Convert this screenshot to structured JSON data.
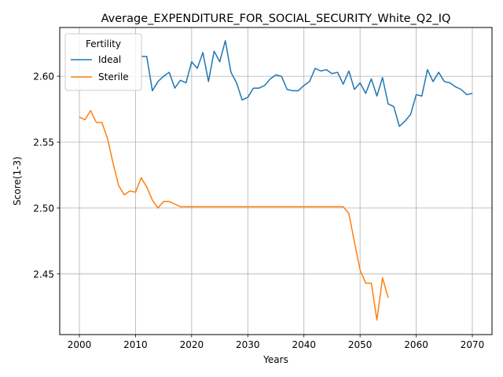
{
  "chart_data": {
    "type": "line",
    "title": "Average_EXPENDITURE_FOR_SOCIAL_SECURITY_White_Q2_IQ",
    "xlabel": "Years",
    "ylabel": "Score(1-3)",
    "xlim": [
      1996.5,
      2073.5
    ],
    "ylim": [
      2.404,
      2.637
    ],
    "xticks": [
      2000,
      2010,
      2020,
      2030,
      2040,
      2050,
      2060,
      2070
    ],
    "yticks": [
      2.45,
      2.5,
      2.55,
      2.6
    ],
    "ytick_labels": [
      "2.45",
      "2.50",
      "2.55",
      "2.60"
    ],
    "grid": true,
    "legend": {
      "title": "Fertility",
      "position": "top-left"
    },
    "series": [
      {
        "name": "Ideal",
        "color": "#1f77b4",
        "x": [
          2011,
          2012,
          2013,
          2014,
          2015,
          2016,
          2017,
          2018,
          2019,
          2020,
          2021,
          2022,
          2023,
          2024,
          2025,
          2026,
          2027,
          2028,
          2029,
          2030,
          2031,
          2032,
          2033,
          2034,
          2035,
          2036,
          2037,
          2038,
          2039,
          2040,
          2041,
          2042,
          2043,
          2044,
          2045,
          2046,
          2047,
          2048,
          2049,
          2050,
          2051,
          2052,
          2053,
          2054,
          2055,
          2056,
          2057,
          2058,
          2059,
          2060,
          2061,
          2062,
          2063,
          2064,
          2065,
          2066,
          2067,
          2068,
          2069,
          2070
        ],
        "y": [
          2.615,
          2.615,
          2.589,
          2.596,
          2.6,
          2.603,
          2.591,
          2.597,
          2.595,
          2.611,
          2.606,
          2.618,
          2.596,
          2.619,
          2.611,
          2.627,
          2.603,
          2.595,
          2.582,
          2.584,
          2.591,
          2.591,
          2.593,
          2.598,
          2.601,
          2.6,
          2.59,
          2.589,
          2.589,
          2.593,
          2.596,
          2.606,
          2.604,
          2.605,
          2.602,
          2.603,
          2.594,
          2.604,
          2.59,
          2.595,
          2.587,
          2.598,
          2.585,
          2.599,
          2.579,
          2.577,
          2.562,
          2.566,
          2.571,
          2.586,
          2.585,
          2.605,
          2.596,
          2.603,
          2.596,
          2.595,
          2.592,
          2.59,
          2.586,
          2.587
        ]
      },
      {
        "name": "Sterile",
        "color": "#ff7f0e",
        "x": [
          2000,
          2001,
          2002,
          2003,
          2004,
          2005,
          2006,
          2007,
          2008,
          2009,
          2010,
          2011,
          2012,
          2013,
          2014,
          2015,
          2016,
          2017,
          2018,
          2019,
          2020,
          2021,
          2022,
          2023,
          2024,
          2025,
          2026,
          2027,
          2028,
          2029,
          2030,
          2031,
          2032,
          2033,
          2034,
          2035,
          2036,
          2037,
          2038,
          2039,
          2040,
          2041,
          2042,
          2043,
          2044,
          2045,
          2046,
          2047,
          2048,
          2049,
          2050,
          2051,
          2052,
          2053,
          2054,
          2055
        ],
        "y": [
          2.569,
          2.567,
          2.574,
          2.565,
          2.565,
          2.553,
          2.534,
          2.517,
          2.51,
          2.513,
          2.512,
          2.523,
          2.516,
          2.506,
          2.5,
          2.505,
          2.505,
          2.503,
          2.501,
          2.501,
          2.501,
          2.501,
          2.501,
          2.501,
          2.501,
          2.501,
          2.501,
          2.501,
          2.501,
          2.501,
          2.501,
          2.501,
          2.501,
          2.501,
          2.501,
          2.501,
          2.501,
          2.501,
          2.501,
          2.501,
          2.501,
          2.501,
          2.501,
          2.501,
          2.501,
          2.501,
          2.501,
          2.501,
          2.496,
          2.474,
          2.453,
          2.443,
          2.443,
          2.415,
          2.447,
          2.432
        ]
      }
    ]
  }
}
